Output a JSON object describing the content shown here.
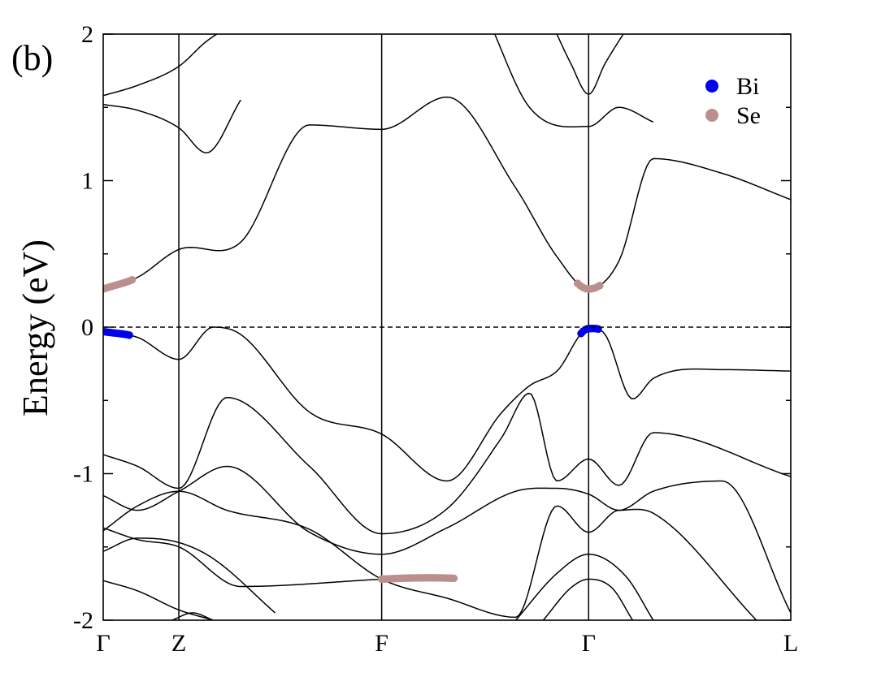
{
  "chart_data": {
    "type": "line",
    "panel_label": "(b)",
    "xlabel": "",
    "ylabel": "Energy (eV)",
    "ylim": [
      -2,
      2
    ],
    "yticks": [
      -2,
      -1,
      0,
      1,
      2
    ],
    "ytick_labels": [
      "-2",
      "-1",
      "0",
      "1",
      "2"
    ],
    "xlim": [
      0,
      1
    ],
    "high_symmetry_points": [
      {
        "label": "Γ",
        "x": 0.0
      },
      {
        "label": "Z",
        "x": 0.11
      },
      {
        "label": "F",
        "x": 0.405
      },
      {
        "label": "Γ",
        "x": 0.706
      },
      {
        "label": "L",
        "x": 1.0
      }
    ],
    "fermi_level": 0,
    "grid": false,
    "legend_position": "top-right",
    "legend": [
      {
        "name": "Bi",
        "color": "#0000ee"
      },
      {
        "name": "Se",
        "color": "#bc8f8f"
      }
    ],
    "series": [
      {
        "x": [
          0,
          0.05,
          0.11,
          0.2,
          0.3,
          0.405,
          0.5,
          0.6,
          0.66,
          0.706,
          0.75,
          0.8,
          0.9,
          1.0
        ],
        "y": [
          0.26,
          0.34,
          0.53,
          0.58,
          1.38,
          1.35,
          1.57,
          0.95,
          0.48,
          0.26,
          0.45,
          1.15,
          1.05,
          0.87
        ]
      },
      {
        "x": [
          0,
          0.05,
          0.11,
          0.15,
          0.2
        ],
        "y": [
          1.58,
          1.65,
          1.78,
          1.95,
          2.1
        ]
      },
      {
        "x": [
          0,
          0.05,
          0.11,
          0.15,
          0.2
        ],
        "y": [
          1.52,
          1.48,
          1.36,
          1.19,
          1.55
        ]
      },
      {
        "x": [
          0.56,
          0.62,
          0.706,
          0.75,
          0.8
        ],
        "y": [
          2.1,
          1.5,
          1.37,
          1.5,
          1.4
        ]
      },
      {
        "x": [
          0.65,
          0.68,
          0.706,
          0.73,
          0.77
        ],
        "y": [
          2.1,
          1.8,
          1.59,
          1.8,
          2.1
        ]
      },
      {
        "x": [
          0,
          0.05,
          0.11,
          0.16,
          0.2,
          0.3,
          0.405,
          0.5,
          0.58,
          0.62,
          0.66,
          0.706,
          0.73,
          0.77,
          0.8,
          0.9,
          1.0
        ],
        "y": [
          -0.03,
          -0.07,
          -0.22,
          0.0,
          -0.05,
          -0.58,
          -0.73,
          -1.05,
          -0.58,
          -0.4,
          -0.3,
          -0.01,
          -0.05,
          -0.49,
          -0.35,
          -0.29,
          -0.3
        ]
      },
      {
        "x": [
          0,
          0.05,
          0.11,
          0.18,
          0.3,
          0.405,
          0.5,
          0.58,
          0.62,
          0.66,
          0.706,
          0.75,
          0.8,
          1.0
        ],
        "y": [
          -0.87,
          -0.95,
          -1.1,
          -0.48,
          -0.95,
          -1.41,
          -1.24,
          -0.75,
          -0.45,
          -1.05,
          -0.9,
          -1.08,
          -0.72,
          -1.02
        ]
      },
      {
        "x": [
          0,
          0.05,
          0.11,
          0.18,
          0.3,
          0.405,
          0.5,
          0.6,
          0.66,
          0.706,
          0.75,
          0.8,
          0.9,
          1.0
        ],
        "y": [
          -1.15,
          -1.25,
          -1.12,
          -0.95,
          -1.4,
          -1.55,
          -1.37,
          -1.12,
          -1.1,
          -1.14,
          -1.25,
          -1.12,
          -1.05,
          -1.95
        ]
      },
      {
        "x": [
          0,
          0.05,
          0.11,
          0.18,
          0.3,
          0.405,
          0.5,
          0.6,
          0.66,
          0.706,
          0.75,
          0.8,
          0.95
        ],
        "y": [
          -1.39,
          -1.22,
          -1.12,
          -1.25,
          -1.38,
          -1.72,
          -1.85,
          -1.98,
          -1.22,
          -1.4,
          -1.25,
          -1.27,
          -2.0
        ]
      },
      {
        "x": [
          0,
          0.05,
          0.11,
          0.16,
          0.25
        ],
        "y": [
          -1.53,
          -1.44,
          -1.47,
          -1.58,
          -1.95
        ]
      },
      {
        "x": [
          0,
          0.05,
          0.11,
          0.2,
          0.405
        ],
        "y": [
          -1.37,
          -1.45,
          -1.5,
          -1.77,
          -1.72
        ]
      },
      {
        "x": [
          0,
          0.05,
          0.11,
          0.16
        ],
        "y": [
          -1.73,
          -1.8,
          -1.93,
          -2.0
        ]
      },
      {
        "x": [
          0.1,
          0.13,
          0.16
        ],
        "y": [
          -2.0,
          -1.95,
          -2.0
        ]
      },
      {
        "x": [
          0.6,
          0.66,
          0.706,
          0.76,
          0.8
        ],
        "y": [
          -2.0,
          -1.68,
          -1.55,
          -1.7,
          -2.0
        ]
      },
      {
        "x": [
          0.64,
          0.68,
          0.706,
          0.74,
          0.77
        ],
        "y": [
          -2.0,
          -1.78,
          -1.72,
          -1.78,
          -2.0
        ]
      }
    ],
    "projections": [
      {
        "name": "Se",
        "x_range": [
          0,
          0.042
        ],
        "band": 0
      },
      {
        "name": "Se",
        "x_range": [
          0.69,
          0.722
        ],
        "band": 0
      },
      {
        "name": "Bi",
        "x_range": [
          0,
          0.038
        ],
        "band": 5
      },
      {
        "name": "Bi",
        "x_range": [
          0.695,
          0.72
        ],
        "band": 5
      },
      {
        "name": "Se",
        "x_range": [
          0.405,
          0.51
        ],
        "band": 10
      }
    ]
  }
}
